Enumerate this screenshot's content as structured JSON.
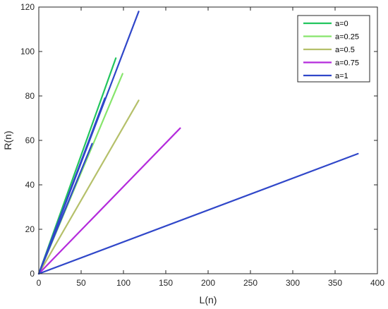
{
  "chart_data": {
    "type": "line",
    "xlabel": "L(n)",
    "ylabel": "R(n)",
    "xlim": [
      0,
      400
    ],
    "ylim": [
      0,
      120
    ],
    "xticks": [
      0,
      50,
      100,
      150,
      200,
      250,
      300,
      350,
      400
    ],
    "yticks": [
      0,
      20,
      40,
      60,
      80,
      100,
      120
    ],
    "grid": false,
    "legend_position": "top-right",
    "series": [
      {
        "name": "a=0",
        "color": "#22C55E",
        "x": [
          0,
          91
        ],
        "y": [
          0,
          97
        ]
      },
      {
        "name": "a=0.25",
        "color": "#86E56B",
        "x": [
          0,
          99
        ],
        "y": [
          0,
          90
        ]
      },
      {
        "name": "a=0.5",
        "color": "#B5C06A",
        "x": [
          0,
          118
        ],
        "y": [
          0,
          78
        ]
      },
      {
        "name": "a=0.75",
        "color": "#B42BDC",
        "x": [
          0,
          167
        ],
        "y": [
          0,
          65.5
        ]
      },
      {
        "name": "a=1",
        "color": "#3047C9",
        "segments": [
          {
            "x": [
              0,
              118
            ],
            "y": [
              0,
              118
            ]
          },
          {
            "x": [
              0,
              78
            ],
            "y": [
              0,
              79
            ]
          },
          {
            "x": [
              0,
              63
            ],
            "y": [
              0,
              58.5
            ]
          },
          {
            "x": [
              0,
              377
            ],
            "y": [
              0,
              54
            ]
          }
        ]
      }
    ]
  }
}
